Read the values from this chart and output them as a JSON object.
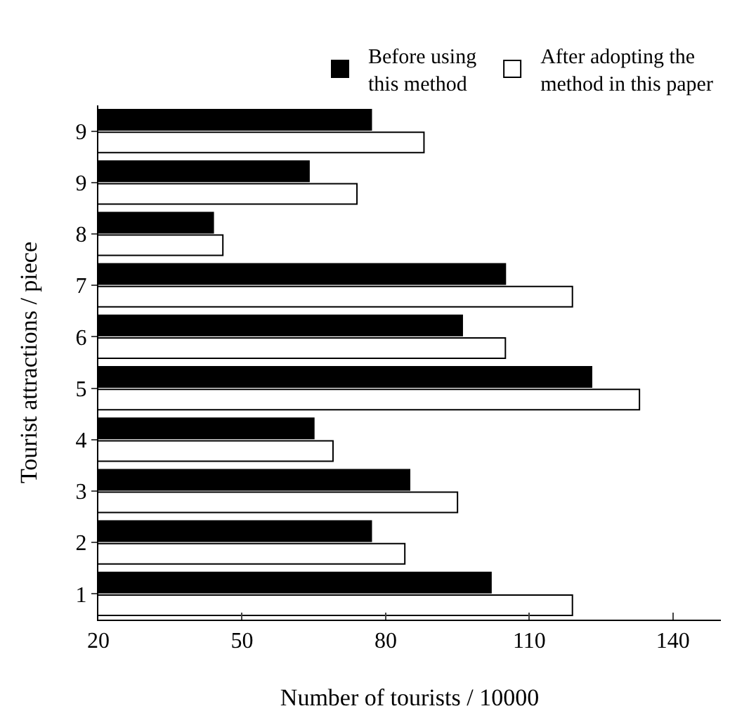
{
  "chart_data": {
    "type": "bar",
    "orientation": "horizontal",
    "xlabel": "Number of tourists / 10000",
    "ylabel": "Tourist attractions / piece",
    "categories": [
      "9",
      "9",
      "8",
      "7",
      "6",
      "5",
      "4",
      "3",
      "2",
      "1"
    ],
    "series": [
      {
        "name": "Before using this method",
        "color": "#000000",
        "values": [
          77,
          64,
          44,
          105,
          96,
          123,
          65,
          85,
          77,
          102
        ]
      },
      {
        "name": "After adopting the method in this paper",
        "color": "#ffffff",
        "values": [
          88,
          74,
          46,
          119,
          105,
          133,
          69,
          95,
          84,
          119
        ]
      }
    ],
    "xlim": [
      20,
      150
    ],
    "xticks": [
      20,
      50,
      80,
      110,
      140
    ],
    "grid": false,
    "legend": "top right"
  }
}
